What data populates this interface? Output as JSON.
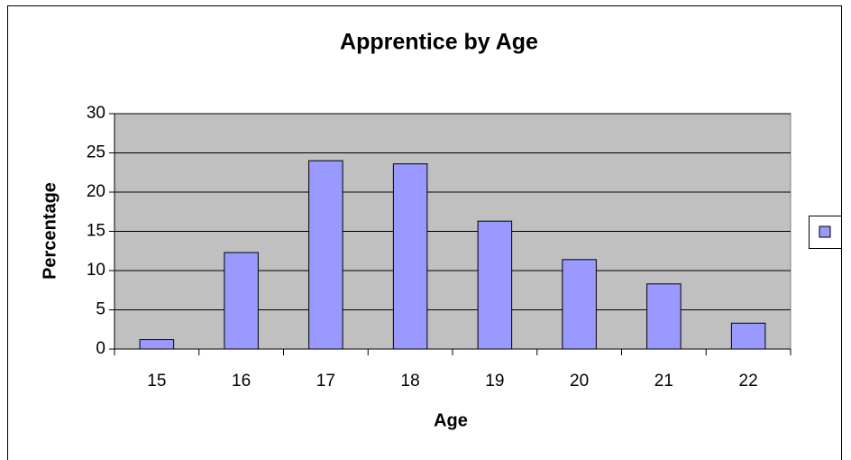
{
  "chart_data": {
    "type": "bar",
    "title": "Apprentice by Age",
    "x_label": "Age",
    "y_label": "Percentage",
    "categories": [
      "15",
      "16",
      "17",
      "18",
      "19",
      "20",
      "21",
      "22"
    ],
    "values": [
      1.2,
      12.3,
      24.0,
      23.6,
      16.3,
      11.4,
      8.3,
      3.3
    ],
    "color": "#9999ff",
    "ylim": [
      0,
      30
    ],
    "yticks": [
      0,
      5,
      10,
      15,
      20,
      25,
      30
    ],
    "grid": true,
    "legend": "right"
  }
}
